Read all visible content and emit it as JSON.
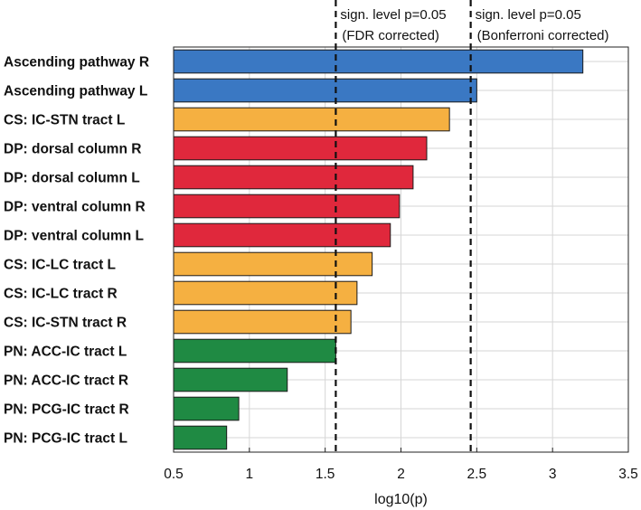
{
  "colors": {
    "blue": "#3a78c3",
    "orange": "#f5b041",
    "red": "#e0283c",
    "green": "#1f8a43"
  },
  "chart_data": {
    "type": "bar",
    "orientation": "horizontal",
    "xlabel": "log10(p)",
    "ylabel": "",
    "xlim": [
      0.5,
      3.5
    ],
    "xticks": [
      "0.5",
      "1",
      "1.5",
      "2",
      "2.5",
      "3",
      "3.5"
    ],
    "grid": true,
    "categories": [
      "Ascending pathway R",
      "Ascending pathway L",
      "CS: IC-STN tract L",
      "DP: dorsal column R",
      "DP: dorsal column L",
      "DP: ventral column R",
      "DP: ventral column L",
      "CS: IC-LC tract L",
      "CS: IC-LC tract R",
      "CS: IC-STN tract R",
      "PN: ACC-IC tract L",
      "PN: ACC-IC tract R",
      "PN: PCG-IC tract R",
      "PN: PCG-IC tract L"
    ],
    "values": [
      3.2,
      2.5,
      2.32,
      2.17,
      2.08,
      1.99,
      1.93,
      1.81,
      1.71,
      1.67,
      1.57,
      1.25,
      0.93,
      0.85
    ],
    "bar_colors": [
      "blue",
      "blue",
      "orange",
      "red",
      "red",
      "red",
      "red",
      "orange",
      "orange",
      "orange",
      "green",
      "green",
      "green",
      "green"
    ],
    "reference_lines": [
      {
        "x": 1.57,
        "label_line1": "sign. level p=0.05",
        "label_line2": "(FDR corrected)"
      },
      {
        "x": 2.46,
        "label_line1": "sign. level p=0.05",
        "label_line2": "(Bonferroni corrected)"
      }
    ]
  }
}
